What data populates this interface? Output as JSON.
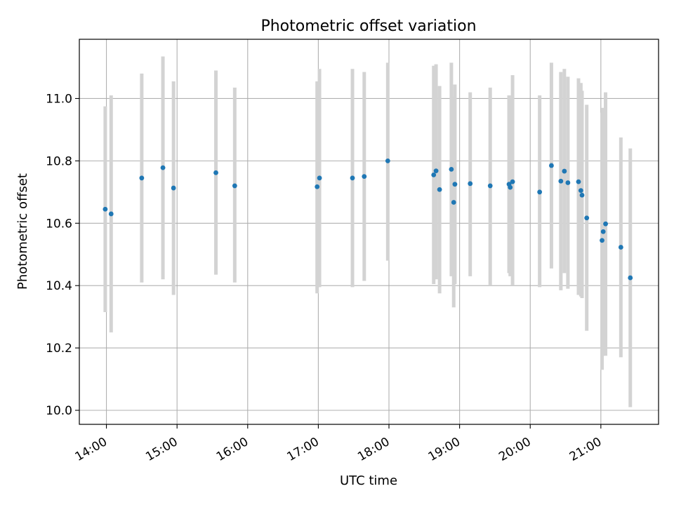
{
  "chart_data": {
    "type": "scatter",
    "title": "Photometric offset variation",
    "xlabel": "UTC time",
    "ylabel": "Photometric offset",
    "x_ticks": [
      "14:00",
      "15:00",
      "16:00",
      "17:00",
      "18:00",
      "19:00",
      "20:00",
      "21:00"
    ],
    "y_ticks": [
      "10.0",
      "10.2",
      "10.4",
      "10.6",
      "10.8",
      "11.0"
    ],
    "xlim": [
      "13:37",
      "21:49"
    ],
    "ylim": [
      9.955,
      11.19
    ],
    "grid": true,
    "marker_color": "#1f77b4",
    "errorbar_color": "#d3d3d3",
    "points": [
      {
        "x": "13:59",
        "y": 10.645,
        "ymin": 10.315,
        "ymax": 10.975
      },
      {
        "x": "14:04",
        "y": 10.63,
        "ymin": 10.25,
        "ymax": 11.01
      },
      {
        "x": "14:30",
        "y": 10.745,
        "ymin": 10.41,
        "ymax": 11.08
      },
      {
        "x": "14:48",
        "y": 10.778,
        "ymin": 10.42,
        "ymax": 11.135
      },
      {
        "x": "14:57",
        "y": 10.713,
        "ymin": 10.37,
        "ymax": 11.055
      },
      {
        "x": "15:33",
        "y": 10.762,
        "ymin": 10.435,
        "ymax": 11.09
      },
      {
        "x": "15:49",
        "y": 10.72,
        "ymin": 10.41,
        "ymax": 11.035
      },
      {
        "x": "16:59",
        "y": 10.717,
        "ymin": 10.375,
        "ymax": 11.055
      },
      {
        "x": "17:01",
        "y": 10.745,
        "ymin": 10.395,
        "ymax": 11.095
      },
      {
        "x": "17:29",
        "y": 10.745,
        "ymin": 10.395,
        "ymax": 11.095
      },
      {
        "x": "17:39",
        "y": 10.75,
        "ymin": 10.415,
        "ymax": 11.085
      },
      {
        "x": "17:59",
        "y": 10.8,
        "ymin": 10.48,
        "ymax": 11.115
      },
      {
        "x": "18:38",
        "y": 10.755,
        "ymin": 10.405,
        "ymax": 11.105
      },
      {
        "x": "18:40",
        "y": 10.768,
        "ymin": 10.42,
        "ymax": 11.11
      },
      {
        "x": "18:43",
        "y": 10.708,
        "ymin": 10.375,
        "ymax": 11.04
      },
      {
        "x": "18:53",
        "y": 10.773,
        "ymin": 10.43,
        "ymax": 11.115
      },
      {
        "x": "18:55",
        "y": 10.667,
        "ymin": 10.33,
        "ymax": 11.005
      },
      {
        "x": "18:56",
        "y": 10.725,
        "ymin": 10.405,
        "ymax": 11.045
      },
      {
        "x": "19:09",
        "y": 10.727,
        "ymin": 10.43,
        "ymax": 11.02
      },
      {
        "x": "19:26",
        "y": 10.72,
        "ymin": 10.4,
        "ymax": 11.035
      },
      {
        "x": "19:42",
        "y": 10.725,
        "ymin": 10.44,
        "ymax": 11.01
      },
      {
        "x": "19:43",
        "y": 10.715,
        "ymin": 10.43,
        "ymax": 11.0
      },
      {
        "x": "19:45",
        "y": 10.733,
        "ymin": 10.4,
        "ymax": 11.075
      },
      {
        "x": "20:08",
        "y": 10.7,
        "ymin": 10.395,
        "ymax": 11.01
      },
      {
        "x": "20:18",
        "y": 10.785,
        "ymin": 10.455,
        "ymax": 11.115
      },
      {
        "x": "20:26",
        "y": 10.735,
        "ymin": 10.385,
        "ymax": 11.085
      },
      {
        "x": "20:29",
        "y": 10.767,
        "ymin": 10.44,
        "ymax": 11.095
      },
      {
        "x": "20:32",
        "y": 10.73,
        "ymin": 10.39,
        "ymax": 11.07
      },
      {
        "x": "20:41",
        "y": 10.733,
        "ymin": 10.37,
        "ymax": 11.065
      },
      {
        "x": "20:43",
        "y": 10.705,
        "ymin": 10.365,
        "ymax": 11.05
      },
      {
        "x": "20:44",
        "y": 10.69,
        "ymin": 10.36,
        "ymax": 11.025
      },
      {
        "x": "20:48",
        "y": 10.617,
        "ymin": 10.255,
        "ymax": 10.98
      },
      {
        "x": "21:01",
        "y": 10.545,
        "ymin": 10.13,
        "ymax": 10.955
      },
      {
        "x": "21:02",
        "y": 10.573,
        "ymin": 10.175,
        "ymax": 10.97
      },
      {
        "x": "21:04",
        "y": 10.598,
        "ymin": 10.175,
        "ymax": 11.02
      },
      {
        "x": "21:17",
        "y": 10.523,
        "ymin": 10.17,
        "ymax": 10.875
      },
      {
        "x": "21:25",
        "y": 10.425,
        "ymin": 10.01,
        "ymax": 10.84
      }
    ]
  }
}
